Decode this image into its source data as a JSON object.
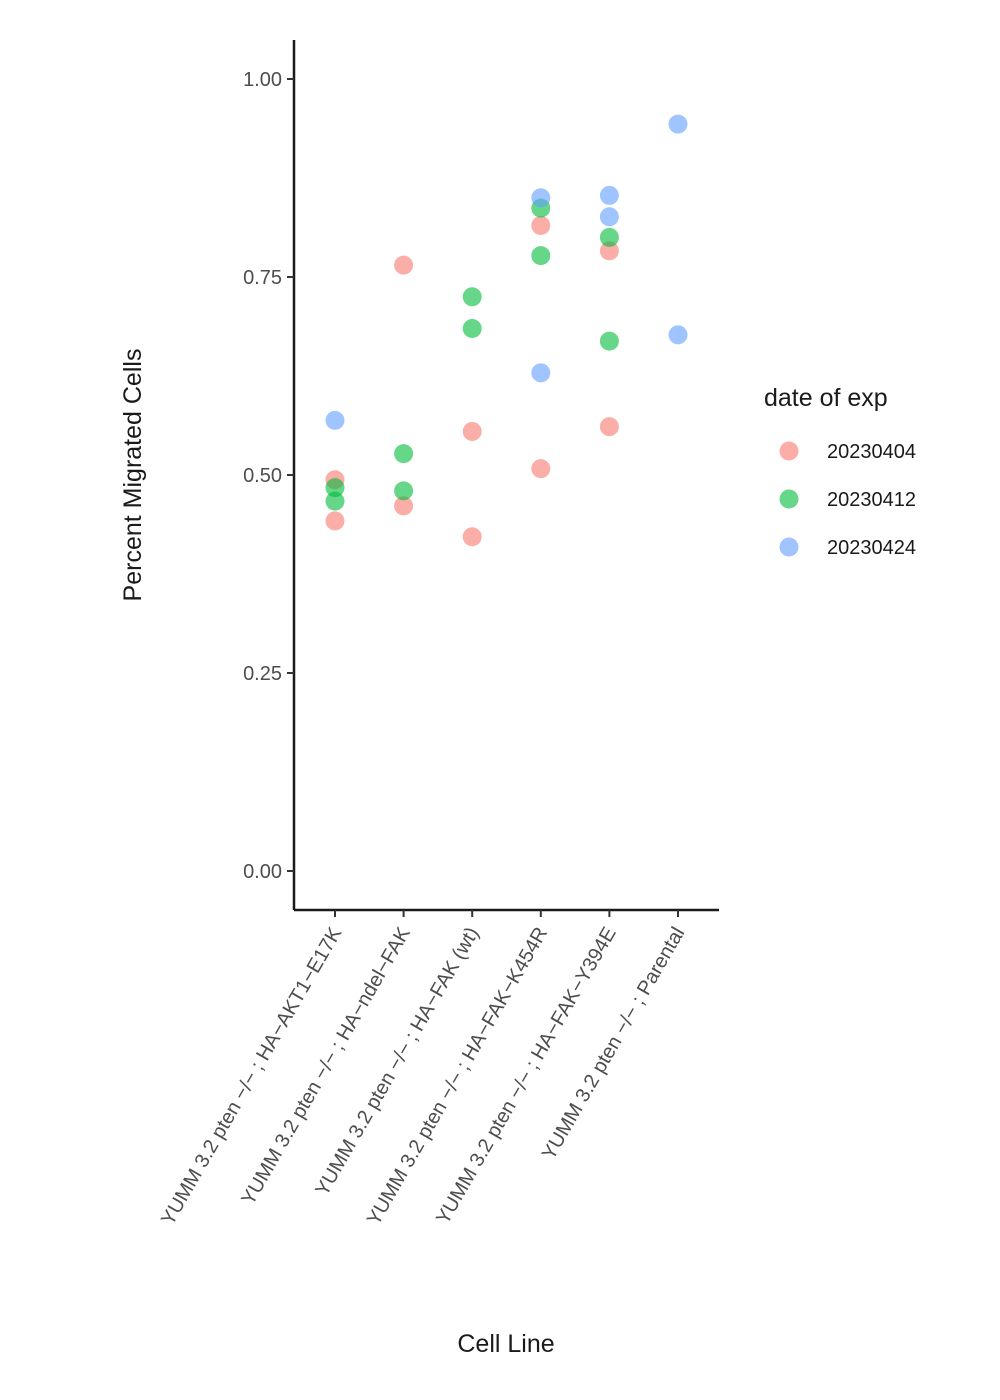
{
  "chart_data": {
    "type": "scatter",
    "title": "",
    "xlabel": "Cell Line",
    "ylabel": "Percent Migrated Cells",
    "ylim": [
      -0.05,
      1.05
    ],
    "yticks": [
      "0.00",
      "0.25",
      "0.50",
      "0.75",
      "1.00"
    ],
    "grid": false,
    "legend_position": "right",
    "legend_title": "date of exp",
    "categories": [
      "YUMM 3.2 pten −/− ; HA−AKT1−E17K",
      "YUMM 3.2 pten −/− ; HA−ndel−FAK",
      "YUMM 3.2 pten −/− ; HA−FAK (wt)",
      "YUMM 3.2 pten −/− ; HA−FAK−K454R",
      "YUMM 3.2 pten −/− ; HA−FAK−Y394E",
      "YUMM 3.2 pten −/− ; Parental"
    ],
    "series": [
      {
        "name": "20230404",
        "color": "#f8766d",
        "points": [
          {
            "x": 0,
            "y": 0.494
          },
          {
            "x": 0,
            "y": 0.442
          },
          {
            "x": 1,
            "y": 0.765
          },
          {
            "x": 1,
            "y": 0.461
          },
          {
            "x": 2,
            "y": 0.555
          },
          {
            "x": 2,
            "y": 0.422
          },
          {
            "x": 3,
            "y": 0.815
          },
          {
            "x": 3,
            "y": 0.508
          },
          {
            "x": 4,
            "y": 0.783
          },
          {
            "x": 4,
            "y": 0.561
          }
        ]
      },
      {
        "name": "20230412",
        "color": "#00ba38",
        "points": [
          {
            "x": 0,
            "y": 0.484
          },
          {
            "x": 0,
            "y": 0.467
          },
          {
            "x": 1,
            "y": 0.527
          },
          {
            "x": 1,
            "y": 0.48
          },
          {
            "x": 2,
            "y": 0.725
          },
          {
            "x": 2,
            "y": 0.685
          },
          {
            "x": 3,
            "y": 0.837
          },
          {
            "x": 3,
            "y": 0.777
          },
          {
            "x": 4,
            "y": 0.8
          },
          {
            "x": 4,
            "y": 0.669
          }
        ]
      },
      {
        "name": "20230424",
        "color": "#619cff",
        "points": [
          {
            "x": 0,
            "y": 0.569
          },
          {
            "x": 3,
            "y": 0.85
          },
          {
            "x": 3,
            "y": 0.629
          },
          {
            "x": 4,
            "y": 0.853
          },
          {
            "x": 4,
            "y": 0.826
          },
          {
            "x": 5,
            "y": 0.943
          },
          {
            "x": 5,
            "y": 0.677
          }
        ]
      }
    ]
  }
}
